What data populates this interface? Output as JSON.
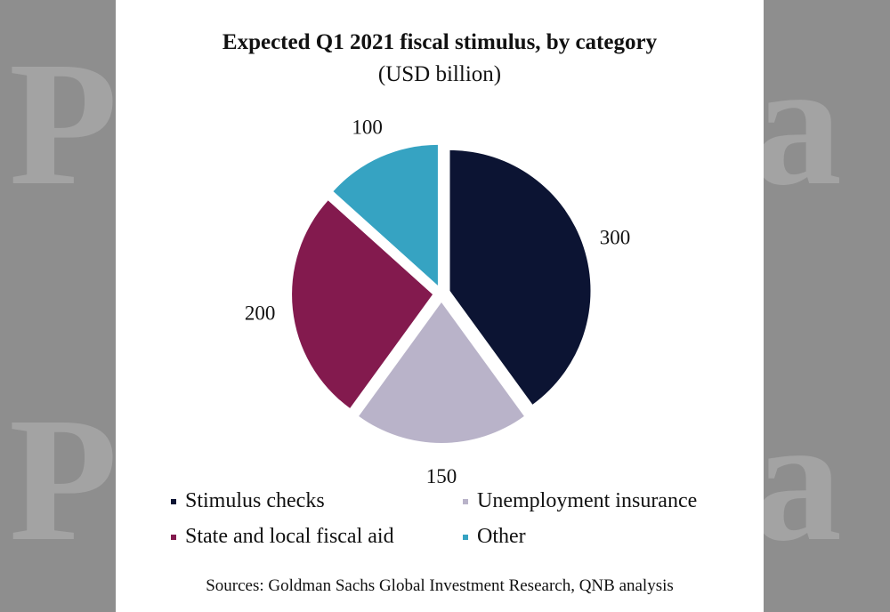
{
  "watermark": {
    "left_glyph": "P",
    "right_glyph": "a"
  },
  "chart_data": {
    "type": "pie",
    "title": "Expected Q1 2021 fiscal stimulus, by category",
    "subtitle": "(USD billion)",
    "categories": [
      "Stimulus checks",
      "Unemployment insurance",
      "State and local fiscal aid",
      "Other"
    ],
    "values": [
      300,
      150,
      200,
      100
    ],
    "data_labels": [
      "300",
      "150",
      "200",
      "100"
    ],
    "colors": [
      "#0c1433",
      "#b9b3c9",
      "#831a4e",
      "#36a3c2"
    ],
    "exploded": true,
    "start": "12 o'clock, clockwise",
    "legend_placement": "bottom"
  },
  "source": "Sources: Goldman Sachs Global Investment Research, QNB analysis"
}
